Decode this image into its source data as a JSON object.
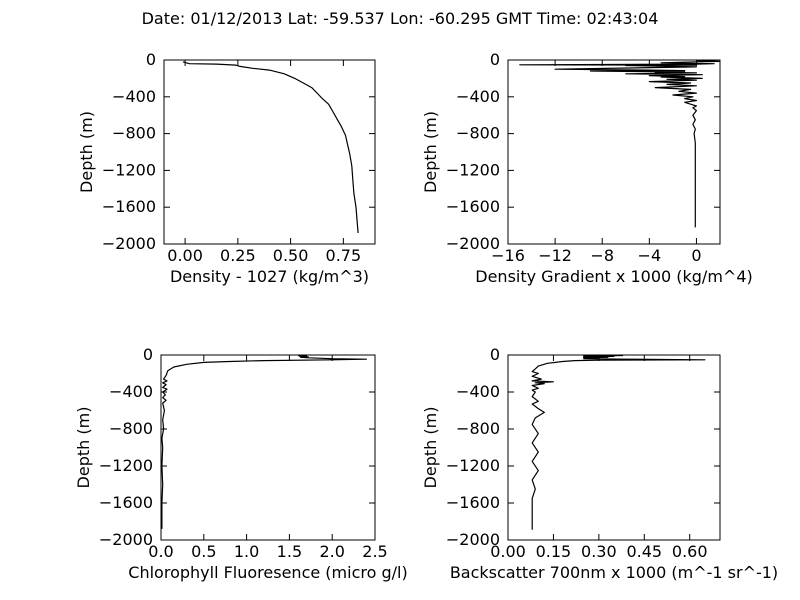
{
  "figure": {
    "title": "Date: 01/12/2013  Lat:  -59.537 Lon:  -60.295  GMT Time: 02:43:04"
  },
  "chart_data": [
    {
      "type": "line",
      "id": "density",
      "xlabel": "Density - 1027 (kg/m^3)",
      "ylabel": "Depth (m)",
      "xlim": [
        -0.1,
        0.9
      ],
      "ylim": [
        -2000,
        0
      ],
      "xticks": [
        0.0,
        0.25,
        0.5,
        0.75
      ],
      "xtick_labels": [
        "0.00",
        "0.25",
        "0.50",
        "0.75"
      ],
      "yticks": [
        0,
        -400,
        -800,
        -1200,
        -1600,
        -2000
      ],
      "ytick_labels": [
        "0",
        "−400",
        "−800",
        "−1200",
        "−1600",
        "−2000"
      ],
      "grid": false,
      "points": [
        [
          -0.01,
          -20
        ],
        [
          0.02,
          -40
        ],
        [
          0.15,
          -45
        ],
        [
          0.24,
          -55
        ],
        [
          0.26,
          -70
        ],
        [
          0.32,
          -90
        ],
        [
          0.4,
          -110
        ],
        [
          0.47,
          -150
        ],
        [
          0.52,
          -200
        ],
        [
          0.56,
          -250
        ],
        [
          0.6,
          -300
        ],
        [
          0.63,
          -370
        ],
        [
          0.65,
          -420
        ],
        [
          0.68,
          -480
        ],
        [
          0.7,
          -560
        ],
        [
          0.72,
          -640
        ],
        [
          0.74,
          -720
        ],
        [
          0.76,
          -820
        ],
        [
          0.77,
          -920
        ],
        [
          0.78,
          -1020
        ],
        [
          0.79,
          -1150
        ],
        [
          0.795,
          -1300
        ],
        [
          0.8,
          -1450
        ],
        [
          0.81,
          -1600
        ],
        [
          0.815,
          -1750
        ],
        [
          0.82,
          -1880
        ]
      ]
    },
    {
      "type": "line",
      "id": "density-gradient",
      "xlabel": "Density Gradient x 1000 (kg/m^4)",
      "ylabel": "Depth (m)",
      "xlim": [
        -16,
        2
      ],
      "ylim": [
        -2000,
        0
      ],
      "xticks": [
        -16,
        -12,
        -8,
        -4,
        0
      ],
      "xtick_labels": [
        "−16",
        "−12",
        "−8",
        "−4",
        "0"
      ],
      "yticks": [
        0,
        -400,
        -800,
        -1200,
        -1600,
        -2000
      ],
      "ytick_labels": [
        "0",
        "−400",
        "−800",
        "−1200",
        "−1600",
        "−2000"
      ],
      "grid": false,
      "points": [
        [
          0.0,
          -5
        ],
        [
          2.0,
          -15
        ],
        [
          0.0,
          -20
        ],
        [
          -3.0,
          -30
        ],
        [
          1.5,
          -40
        ],
        [
          0.0,
          -45
        ],
        [
          -15.0,
          -52
        ],
        [
          0.0,
          -55
        ],
        [
          -6.0,
          -60
        ],
        [
          -2.5,
          -68
        ],
        [
          0.0,
          -75
        ],
        [
          -12.0,
          -100
        ],
        [
          -8.0,
          -105
        ],
        [
          -4.0,
          -110
        ],
        [
          -1.0,
          -115
        ],
        [
          -9.0,
          -120
        ],
        [
          -1.0,
          -130
        ],
        [
          -3.5,
          -135
        ],
        [
          0.0,
          -140
        ],
        [
          -6.0,
          -150
        ],
        [
          0.5,
          -160
        ],
        [
          -4.0,
          -170
        ],
        [
          -1.0,
          -180
        ],
        [
          -3.0,
          -185
        ],
        [
          0.5,
          -200
        ],
        [
          -2.5,
          -210
        ],
        [
          0.0,
          -220
        ],
        [
          -4.0,
          -235
        ],
        [
          -0.5,
          -250
        ],
        [
          -2.5,
          -265
        ],
        [
          0.0,
          -280
        ],
        [
          -3.5,
          -300
        ],
        [
          -0.5,
          -320
        ],
        [
          -1.5,
          -340
        ],
        [
          0.0,
          -360
        ],
        [
          -2.0,
          -380
        ],
        [
          -0.3,
          -400
        ],
        [
          -1.0,
          -420
        ],
        [
          0.0,
          -440
        ],
        [
          -1.0,
          -460
        ],
        [
          -0.5,
          -480
        ],
        [
          0.0,
          -500
        ],
        [
          -0.3,
          -520
        ],
        [
          0.0,
          -550
        ],
        [
          -0.3,
          -600
        ],
        [
          -0.1,
          -650
        ],
        [
          -0.3,
          -700
        ],
        [
          -0.1,
          -750
        ],
        [
          -0.2,
          -800
        ],
        [
          -0.1,
          -900
        ],
        [
          -0.1,
          -1000
        ],
        [
          -0.1,
          -1200
        ],
        [
          -0.1,
          -1400
        ],
        [
          -0.1,
          -1600
        ],
        [
          -0.1,
          -1820
        ]
      ]
    },
    {
      "type": "line",
      "id": "chlorophyll",
      "xlabel": "Chlorophyll Fluoresence (micro g/l)",
      "ylabel": "Depth (m)",
      "xlim": [
        0.0,
        2.5
      ],
      "ylim": [
        -2000,
        0
      ],
      "xticks": [
        0.0,
        0.5,
        1.0,
        1.5,
        2.0,
        2.5
      ],
      "xtick_labels": [
        "0.0",
        "0.5",
        "1.0",
        "1.5",
        "2.0",
        "2.5"
      ],
      "yticks": [
        0,
        -400,
        -800,
        -1200,
        -1600,
        -2000
      ],
      "ytick_labels": [
        "0",
        "−400",
        "−800",
        "−1200",
        "−1600",
        "−2000"
      ],
      "grid": false,
      "points": [
        [
          1.6,
          -5
        ],
        [
          1.7,
          -10
        ],
        [
          1.62,
          -15
        ],
        [
          1.72,
          -20
        ],
        [
          1.63,
          -25
        ],
        [
          1.72,
          -30
        ],
        [
          2.0,
          -40
        ],
        [
          2.4,
          -45
        ],
        [
          2.0,
          -52
        ],
        [
          1.2,
          -60
        ],
        [
          0.8,
          -70
        ],
        [
          0.5,
          -80
        ],
        [
          0.3,
          -100
        ],
        [
          0.15,
          -130
        ],
        [
          0.08,
          -170
        ],
        [
          0.06,
          -220
        ],
        [
          0.03,
          -260
        ],
        [
          0.07,
          -280
        ],
        [
          0.02,
          -300
        ],
        [
          0.06,
          -320
        ],
        [
          0.02,
          -350
        ],
        [
          0.07,
          -370
        ],
        [
          0.02,
          -400
        ],
        [
          0.05,
          -430
        ],
        [
          0.02,
          -460
        ],
        [
          0.06,
          -490
        ],
        [
          0.02,
          -520
        ],
        [
          0.04,
          -600
        ],
        [
          0.02,
          -700
        ],
        [
          0.03,
          -800
        ],
        [
          0.01,
          -900
        ],
        [
          0.02,
          -1000
        ],
        [
          0.01,
          -1200
        ],
        [
          0.02,
          -1400
        ],
        [
          0.01,
          -1600
        ],
        [
          0.01,
          -1880
        ]
      ]
    },
    {
      "type": "line",
      "id": "backscatter",
      "xlabel": "Backscatter 700nm x 1000 (m^-1 sr^-1)",
      "ylabel": "Depth (m)",
      "xlim": [
        0.0,
        0.7
      ],
      "ylim": [
        -2000,
        0
      ],
      "xticks": [
        0.0,
        0.15,
        0.3,
        0.45,
        0.6
      ],
      "xtick_labels": [
        "0.00",
        "0.15",
        "0.30",
        "0.45",
        "0.60"
      ],
      "yticks": [
        0,
        -400,
        -800,
        -1200,
        -1600,
        -2000
      ],
      "ytick_labels": [
        "0",
        "−400",
        "−800",
        "−1200",
        "−1600",
        "−2000"
      ],
      "grid": false,
      "points": [
        [
          0.38,
          -5
        ],
        [
          0.25,
          -10
        ],
        [
          0.35,
          -15
        ],
        [
          0.25,
          -20
        ],
        [
          0.33,
          -25
        ],
        [
          0.25,
          -30
        ],
        [
          0.3,
          -35
        ],
        [
          0.25,
          -40
        ],
        [
          0.4,
          -45
        ],
        [
          0.65,
          -52
        ],
        [
          0.3,
          -55
        ],
        [
          0.22,
          -60
        ],
        [
          0.18,
          -70
        ],
        [
          0.13,
          -90
        ],
        [
          0.1,
          -120
        ],
        [
          0.09,
          -150
        ],
        [
          0.08,
          -180
        ],
        [
          0.1,
          -200
        ],
        [
          0.08,
          -230
        ],
        [
          0.11,
          -260
        ],
        [
          0.08,
          -280
        ],
        [
          0.15,
          -290
        ],
        [
          0.09,
          -300
        ],
        [
          0.12,
          -310
        ],
        [
          0.08,
          -330
        ],
        [
          0.1,
          -360
        ],
        [
          0.08,
          -380
        ],
        [
          0.09,
          -400
        ],
        [
          0.08,
          -450
        ],
        [
          0.1,
          -500
        ],
        [
          0.08,
          -530
        ],
        [
          0.1,
          -580
        ],
        [
          0.12,
          -620
        ],
        [
          0.09,
          -680
        ],
        [
          0.08,
          -750
        ],
        [
          0.1,
          -850
        ],
        [
          0.08,
          -950
        ],
        [
          0.1,
          -1050
        ],
        [
          0.08,
          -1150
        ],
        [
          0.1,
          -1250
        ],
        [
          0.08,
          -1350
        ],
        [
          0.09,
          -1450
        ],
        [
          0.08,
          -1550
        ],
        [
          0.08,
          -1700
        ],
        [
          0.08,
          -1890
        ]
      ]
    }
  ]
}
